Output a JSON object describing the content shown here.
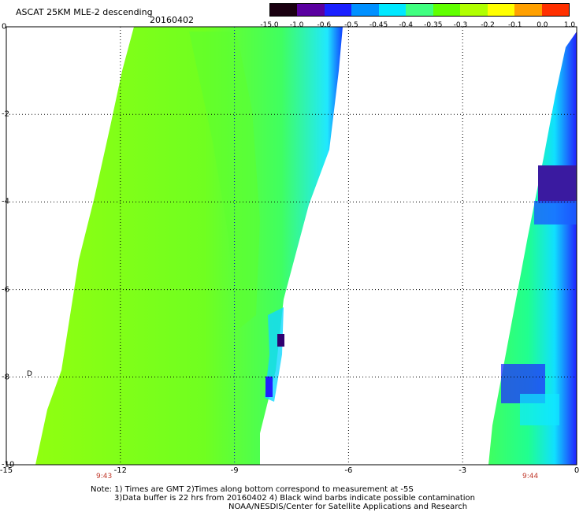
{
  "header": {
    "title": "ASCAT 25KM MLE-2 descending",
    "date": "20160402"
  },
  "colorbar": {
    "labels": [
      "-15.0",
      "-1.0",
      "-0.6",
      "-0.5",
      "-0.45",
      "-0.4",
      "-0.35",
      "-0.3",
      "-0.2",
      "-0.1",
      "0.0",
      "1.0"
    ],
    "colors": [
      "#1a0010",
      "#5a00a0",
      "#1a20ff",
      "#0090ff",
      "#00e8ff",
      "#40ff80",
      "#60ff00",
      "#b0ff00",
      "#ffff00",
      "#ffa000",
      "#ff3000"
    ]
  },
  "map": {
    "x_ticks": [
      "-15",
      "-12",
      "-9",
      "-6",
      "-3",
      "0"
    ],
    "y_ticks": [
      "0",
      "-2",
      "-4",
      "-6",
      "-8",
      "-10"
    ],
    "swath_times": [
      "9:43",
      "9:44"
    ],
    "side_marker": "D"
  },
  "notes": {
    "line1": "Note: 1) Times are GMT 2)Times along bottom correspond to measurement at -5S",
    "line2": "3)Data buffer is 22 hrs from 20160402 4) Black wind barbs indicate possible contamination",
    "line3": "NOAA/NESDIS/Center for Satellite Applications and Research"
  }
}
